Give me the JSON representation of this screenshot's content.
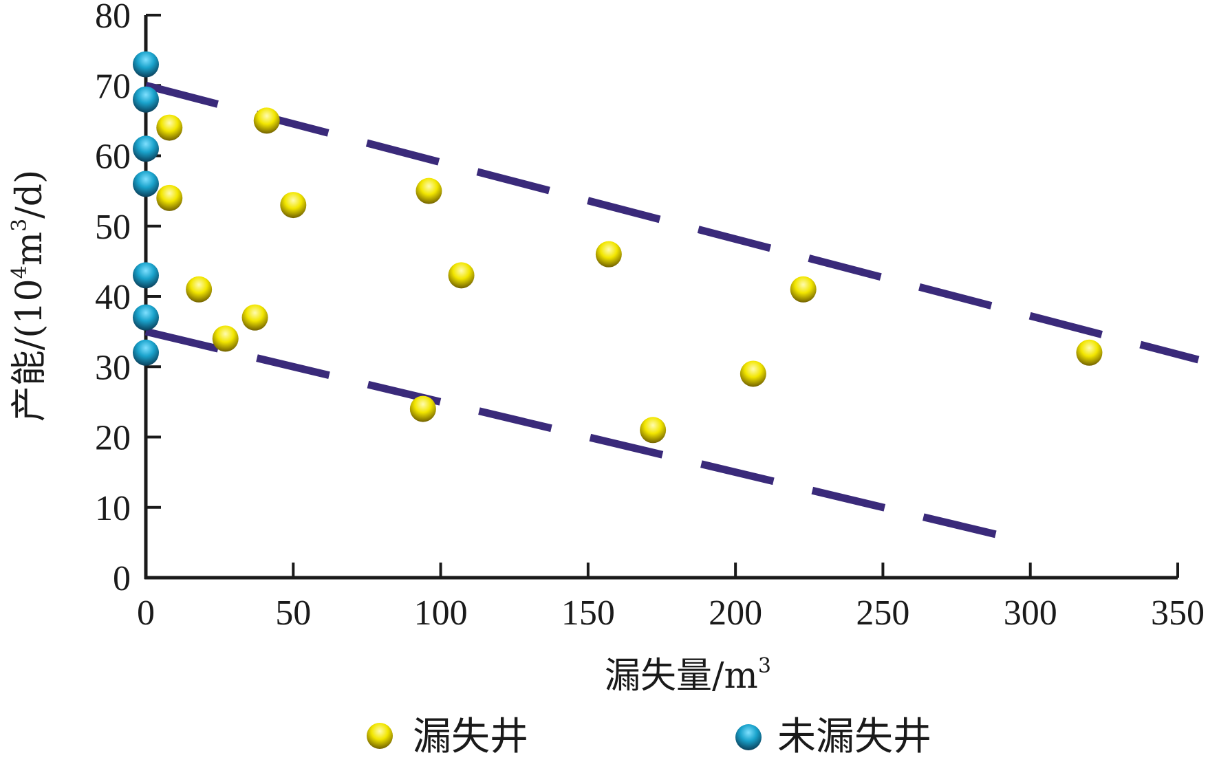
{
  "chart_data": {
    "type": "scatter",
    "title": "",
    "xlabel": "漏失量/m",
    "xlabel_sup": "3",
    "ylabel_parts": [
      "产能/(10",
      "4",
      "m",
      "3",
      "/d)"
    ],
    "xlim": [
      0,
      350
    ],
    "ylim": [
      0,
      80
    ],
    "x_ticks": [
      0,
      50,
      100,
      150,
      200,
      250,
      300,
      350
    ],
    "y_ticks": [
      0,
      10,
      20,
      30,
      40,
      50,
      60,
      70,
      80
    ],
    "legend_position": "bottom",
    "series": [
      {
        "name": "漏失井",
        "color": "#f2e600",
        "points": [
          [
            8,
            64
          ],
          [
            8,
            54
          ],
          [
            18,
            41
          ],
          [
            27,
            34
          ],
          [
            37,
            37
          ],
          [
            41,
            65
          ],
          [
            50,
            53
          ],
          [
            94,
            24
          ],
          [
            96,
            55
          ],
          [
            107,
            43
          ],
          [
            157,
            46
          ],
          [
            172,
            21
          ],
          [
            206,
            29
          ],
          [
            223,
            41
          ],
          [
            320,
            32
          ]
        ]
      },
      {
        "name": "未漏失井",
        "color": "#1aa3cc",
        "points": [
          [
            0,
            73
          ],
          [
            0,
            68
          ],
          [
            0,
            61
          ],
          [
            0,
            56
          ],
          [
            0,
            43
          ],
          [
            0,
            37
          ],
          [
            0,
            32
          ]
        ]
      }
    ],
    "trend_lines": [
      {
        "color": "#3a2a7a",
        "points": [
          [
            0,
            70
          ],
          [
            357,
            31
          ]
        ]
      },
      {
        "color": "#3a2a7a",
        "points": [
          [
            0,
            35
          ],
          [
            300,
            5
          ]
        ]
      }
    ]
  }
}
